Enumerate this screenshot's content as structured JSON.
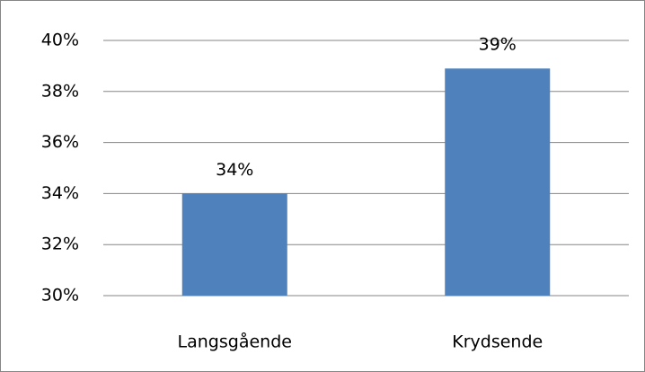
{
  "chart_data": {
    "type": "bar",
    "categories": [
      "Langsgående",
      "Krydsende"
    ],
    "values": [
      34,
      38.9
    ],
    "value_labels": [
      "34%",
      "39%"
    ],
    "color": "#4f81bd",
    "ylim": [
      30,
      40
    ],
    "yticks": [
      {
        "value": 30,
        "label": "30%"
      },
      {
        "value": 32,
        "label": "32%"
      },
      {
        "value": 34,
        "label": "34%"
      },
      {
        "value": 36,
        "label": "36%"
      },
      {
        "value": 38,
        "label": "38%"
      },
      {
        "value": 40,
        "label": "40%"
      }
    ],
    "grid": true
  }
}
